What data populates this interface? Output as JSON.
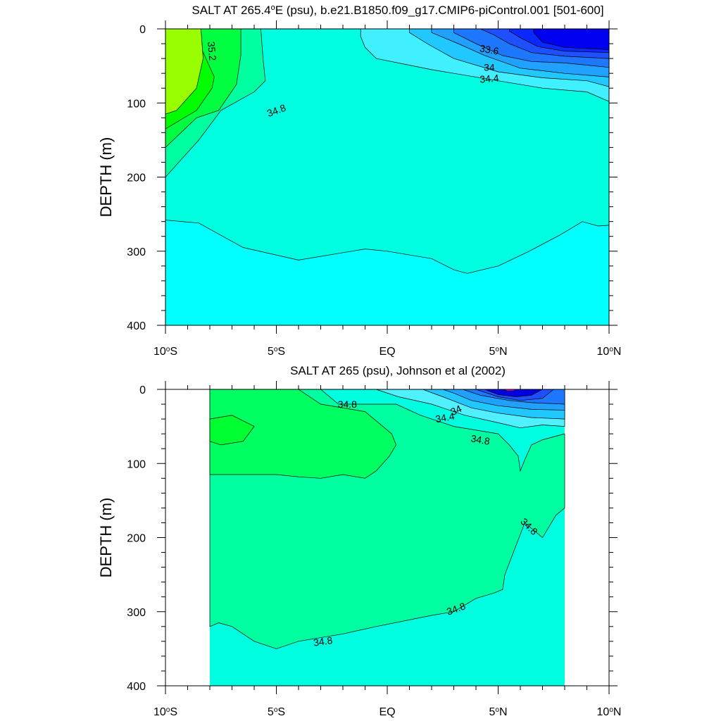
{
  "chart_data": [
    {
      "type": "contour",
      "title": "SALT AT 265.4°E (psu), b.e21.B1850.f09_g17.CMIP6-piControl.001 [501-600]",
      "title_parts": {
        "pre": "SALT AT 265.4",
        "sup": "o",
        "post": "E (psu), b.e21.B1850.f09_g17.CMIP6-piControl.001 [501-600]"
      },
      "ylabel": "DEPTH (m)",
      "xlim": [
        -10,
        10
      ],
      "ylim": [
        400,
        0
      ],
      "x_ticks": [
        {
          "value": -10,
          "num": "10",
          "deg": "o",
          "hemi": "S"
        },
        {
          "value": -5,
          "num": "5",
          "deg": "o",
          "hemi": "S"
        },
        {
          "value": 0,
          "num": "EQ",
          "deg": "",
          "hemi": ""
        },
        {
          "value": 5,
          "num": "5",
          "deg": "o",
          "hemi": "N"
        },
        {
          "value": 10,
          "num": "10",
          "deg": "o",
          "hemi": "N"
        }
      ],
      "y_ticks": [
        "0",
        "100",
        "200",
        "300",
        "400"
      ],
      "y_tick_values": [
        0,
        100,
        200,
        300,
        400
      ],
      "data_xlim": [
        -10,
        10
      ],
      "background_color": "#00ffff",
      "regions": [
        {
          "level": 34.8,
          "color": "#00ffe0",
          "points": [
            [
              -10,
              0
            ],
            [
              10,
              0
            ],
            [
              10,
              265
            ],
            [
              9.5,
              266
            ],
            [
              8.8,
              260
            ],
            [
              7.8,
              278
            ],
            [
              6.4,
              300
            ],
            [
              5,
              320
            ],
            [
              3.6,
              330
            ],
            [
              3,
              325
            ],
            [
              2,
              310
            ],
            [
              0,
              300
            ],
            [
              -1,
              297
            ],
            [
              -4,
              312
            ],
            [
              -6.5,
              295
            ],
            [
              -8.5,
              262
            ],
            [
              -10,
              258
            ]
          ]
        },
        {
          "level": 35.0,
          "color": "#00ffa0",
          "points": [
            [
              -10,
              0
            ],
            [
              -5.7,
              0
            ],
            [
              -5.6,
              40
            ],
            [
              -5.5,
              70
            ],
            [
              -6,
              85
            ],
            [
              -7.5,
              110
            ],
            [
              -8.5,
              150
            ],
            [
              -10,
              200
            ]
          ]
        },
        {
          "level": 35.2,
          "color": "#00ff40",
          "points": [
            [
              -10,
              0
            ],
            [
              -6.6,
              0
            ],
            [
              -6.6,
              35
            ],
            [
              -6.8,
              75
            ],
            [
              -7.6,
              110
            ],
            [
              -8.6,
              120
            ],
            [
              -10,
              160
            ]
          ]
        },
        {
          "level": 35.4,
          "color": "#00ff00",
          "points": [
            [
              -10,
              0
            ],
            [
              -8.4,
              0
            ],
            [
              -8.4,
              25
            ],
            [
              -7.8,
              65
            ],
            [
              -7.9,
              80
            ],
            [
              -8.6,
              110
            ],
            [
              -10,
              135
            ]
          ]
        },
        {
          "level": 35.6,
          "color": "#99ff00",
          "points": [
            [
              -10,
              0
            ],
            [
              -8.4,
              0
            ],
            [
              -8.3,
              40
            ],
            [
              -8.6,
              80
            ],
            [
              -9.5,
              110
            ],
            [
              -10,
              115
            ]
          ]
        },
        {
          "level": 34.6,
          "color": "#40f0ff",
          "points": [
            [
              -1.2,
              0
            ],
            [
              10,
              0
            ],
            [
              10,
              98
            ],
            [
              9,
              85
            ],
            [
              7,
              80
            ],
            [
              5,
              70
            ],
            [
              2,
              55
            ],
            [
              -0.5,
              40
            ],
            [
              -1,
              25
            ],
            [
              -1.2,
              10
            ]
          ]
        },
        {
          "level": 34.4,
          "color": "#20c8ff",
          "points": [
            [
              1,
              0
            ],
            [
              10,
              0
            ],
            [
              10,
              78
            ],
            [
              9,
              70
            ],
            [
              7,
              66
            ],
            [
              5,
              58
            ],
            [
              3,
              40
            ],
            [
              1.8,
              20
            ],
            [
              1,
              5
            ]
          ]
        },
        {
          "level": 34.2,
          "color": "#20a0ff",
          "points": [
            [
              2,
              0
            ],
            [
              10,
              0
            ],
            [
              10,
              65
            ],
            [
              8,
              60
            ],
            [
              6,
              53
            ],
            [
              4.4,
              36
            ],
            [
              3.2,
              20
            ],
            [
              2,
              5
            ]
          ]
        },
        {
          "level": 34.0,
          "color": "#1e78ff",
          "points": [
            [
              3,
              0
            ],
            [
              10,
              0
            ],
            [
              10,
              52
            ],
            [
              8,
              46
            ],
            [
              6.5,
              44
            ],
            [
              5.2,
              36
            ],
            [
              4,
              20
            ],
            [
              3,
              5
            ]
          ]
        },
        {
          "level": 33.8,
          "color": "#1e50ff",
          "points": [
            [
              4.2,
              0
            ],
            [
              10,
              0
            ],
            [
              10,
              40
            ],
            [
              8,
              37
            ],
            [
              6.5,
              32
            ],
            [
              5.5,
              20
            ],
            [
              4.8,
              8
            ]
          ]
        },
        {
          "level": 33.6,
          "color": "#0a28ff",
          "points": [
            [
              5.5,
              0
            ],
            [
              10,
              0
            ],
            [
              10,
              32
            ],
            [
              8,
              30
            ],
            [
              6.8,
              24
            ],
            [
              6,
              12
            ],
            [
              5.5,
              3
            ]
          ]
        },
        {
          "level": 33.4,
          "color": "#0000f0",
          "points": [
            [
              6.6,
              0
            ],
            [
              10,
              0
            ],
            [
              10,
              28
            ],
            [
              8,
              25
            ],
            [
              7,
              18
            ],
            [
              6.6,
              5
            ]
          ]
        }
      ],
      "contour_labels": [
        {
          "text": "35.2",
          "x": -7.9,
          "y": 30,
          "rotate": 85
        },
        {
          "text": "34.8",
          "x": -5.0,
          "y": 110,
          "rotate": -20
        },
        {
          "text": "33.6",
          "x": 4.6,
          "y": 28,
          "rotate": 10
        },
        {
          "text": "34",
          "x": 4.6,
          "y": 52,
          "rotate": 0
        },
        {
          "text": "34.4",
          "x": 4.6,
          "y": 67,
          "rotate": -5
        }
      ]
    },
    {
      "type": "contour",
      "title": "SALT AT 265 (psu), Johnson et al (2002)",
      "ylabel": "DEPTH (m)",
      "xlim": [
        -10,
        10
      ],
      "ylim": [
        400,
        0
      ],
      "x_ticks": [
        {
          "value": -10,
          "num": "10",
          "deg": "o",
          "hemi": "S"
        },
        {
          "value": -5,
          "num": "5",
          "deg": "o",
          "hemi": "S"
        },
        {
          "value": 0,
          "num": "EQ",
          "deg": "",
          "hemi": ""
        },
        {
          "value": 5,
          "num": "5",
          "deg": "o",
          "hemi": "N"
        },
        {
          "value": 10,
          "num": "10",
          "deg": "o",
          "hemi": "N"
        }
      ],
      "y_ticks": [
        "0",
        "100",
        "200",
        "300",
        "400"
      ],
      "y_tick_values": [
        0,
        100,
        200,
        300,
        400
      ],
      "data_xlim": [
        -8,
        8
      ],
      "background_color": "#00ffe0",
      "regions": [
        {
          "level": 34.8,
          "color": "#00ffa0",
          "points": [
            [
              -8,
              0
            ],
            [
              -3,
              0
            ],
            [
              -2.2,
              20
            ],
            [
              0.4,
              20
            ],
            [
              1.5,
              35
            ],
            [
              3,
              50
            ],
            [
              5,
              60
            ],
            [
              5.5,
              75
            ],
            [
              5.9,
              90
            ],
            [
              6,
              110
            ],
            [
              6.2,
              95
            ],
            [
              6.5,
              75
            ],
            [
              7,
              68
            ],
            [
              8,
              60
            ],
            [
              8,
              160
            ],
            [
              7.6,
              170
            ],
            [
              7.2,
              190
            ],
            [
              7,
              200
            ],
            [
              6.6,
              190
            ],
            [
              6.2,
              180
            ],
            [
              5.3,
              250
            ],
            [
              5.2,
              270
            ],
            [
              4.8,
              275
            ],
            [
              4,
              282
            ],
            [
              3,
              300
            ],
            [
              2,
              305
            ],
            [
              -0.5,
              320
            ],
            [
              -2,
              330
            ],
            [
              -4,
              340
            ],
            [
              -5,
              350
            ],
            [
              -6,
              340
            ],
            [
              -7,
              320
            ],
            [
              -7.6,
              315
            ],
            [
              -8,
              320
            ]
          ]
        },
        {
          "level": 35.0,
          "color": "#00ff60",
          "points": [
            [
              -8,
              0
            ],
            [
              -4,
              0
            ],
            [
              -3,
              20
            ],
            [
              -1,
              30
            ],
            [
              0.2,
              60
            ],
            [
              0.4,
              75
            ],
            [
              0.1,
              90
            ],
            [
              -0.5,
              110
            ],
            [
              -1,
              120
            ],
            [
              -2,
              115
            ],
            [
              -3,
              120
            ],
            [
              -4,
              118
            ],
            [
              -5,
              115
            ],
            [
              -6,
              115
            ],
            [
              -8,
              115
            ]
          ]
        },
        {
          "level": 35.2,
          "color": "#00ff30",
          "points": [
            [
              -8,
              40
            ],
            [
              -7,
              35
            ],
            [
              -6,
              50
            ],
            [
              -6.5,
              70
            ],
            [
              -7.5,
              75
            ],
            [
              -8,
              70
            ]
          ]
        },
        {
          "level": 34.6,
          "color": "#50f0ff",
          "points": [
            [
              -0.5,
              0
            ],
            [
              8,
              0
            ],
            [
              8,
              50
            ],
            [
              7,
              48
            ],
            [
              6,
              52
            ],
            [
              5,
              45
            ],
            [
              3.5,
              35
            ],
            [
              2,
              20
            ],
            [
              0.5,
              10
            ]
          ]
        },
        {
          "level": 34.4,
          "color": "#20c8ff",
          "points": [
            [
              1.6,
              0
            ],
            [
              8,
              0
            ],
            [
              8,
              40
            ],
            [
              6.5,
              38
            ],
            [
              5,
              32
            ],
            [
              3.8,
              25
            ],
            [
              2.5,
              10
            ]
          ]
        },
        {
          "level": 34.2,
          "color": "#20a0ff",
          "points": [
            [
              2.5,
              0
            ],
            [
              8,
              0
            ],
            [
              8,
              28
            ],
            [
              6.5,
              27
            ],
            [
              5,
              22
            ],
            [
              3.8,
              15
            ],
            [
              3,
              5
            ]
          ]
        },
        {
          "level": 34.0,
          "color": "#1e78ff",
          "points": [
            [
              3.4,
              0
            ],
            [
              8,
              0
            ],
            [
              8,
              20
            ],
            [
              6.5,
              18
            ],
            [
              5.5,
              15
            ],
            [
              4.2,
              8
            ]
          ]
        },
        {
          "level": 33.8,
          "color": "#1e50ff",
          "points": [
            [
              4,
              0
            ],
            [
              7.5,
              0
            ],
            [
              7,
              12
            ],
            [
              6,
              15
            ],
            [
              5,
              10
            ]
          ]
        },
        {
          "level": 33.6,
          "color": "#0000e0",
          "points": [
            [
              4.4,
              0
            ],
            [
              7,
              0
            ],
            [
              6.5,
              8
            ],
            [
              5.8,
              10
            ],
            [
              5,
              7
            ]
          ]
        },
        {
          "level": 33.4,
          "color": "#ff00ff",
          "points": [
            [
              5.2,
              0
            ],
            [
              5.8,
              0
            ],
            [
              5.7,
              2
            ],
            [
              5.4,
              2
            ]
          ]
        }
      ],
      "contour_labels": [
        {
          "text": "34.8",
          "x": -1.8,
          "y": 20,
          "rotate": 0
        },
        {
          "text": "34",
          "x": 3.1,
          "y": 28,
          "rotate": -25
        },
        {
          "text": "34.4",
          "x": 2.6,
          "y": 38,
          "rotate": -10
        },
        {
          "text": "34.8",
          "x": 4.2,
          "y": 68,
          "rotate": 10
        },
        {
          "text": "34.8",
          "x": 6.4,
          "y": 185,
          "rotate": 45
        },
        {
          "text": "34.8",
          "x": 3.1,
          "y": 296,
          "rotate": -20
        },
        {
          "text": "34.8",
          "x": -2.9,
          "y": 340,
          "rotate": -8
        }
      ]
    }
  ]
}
